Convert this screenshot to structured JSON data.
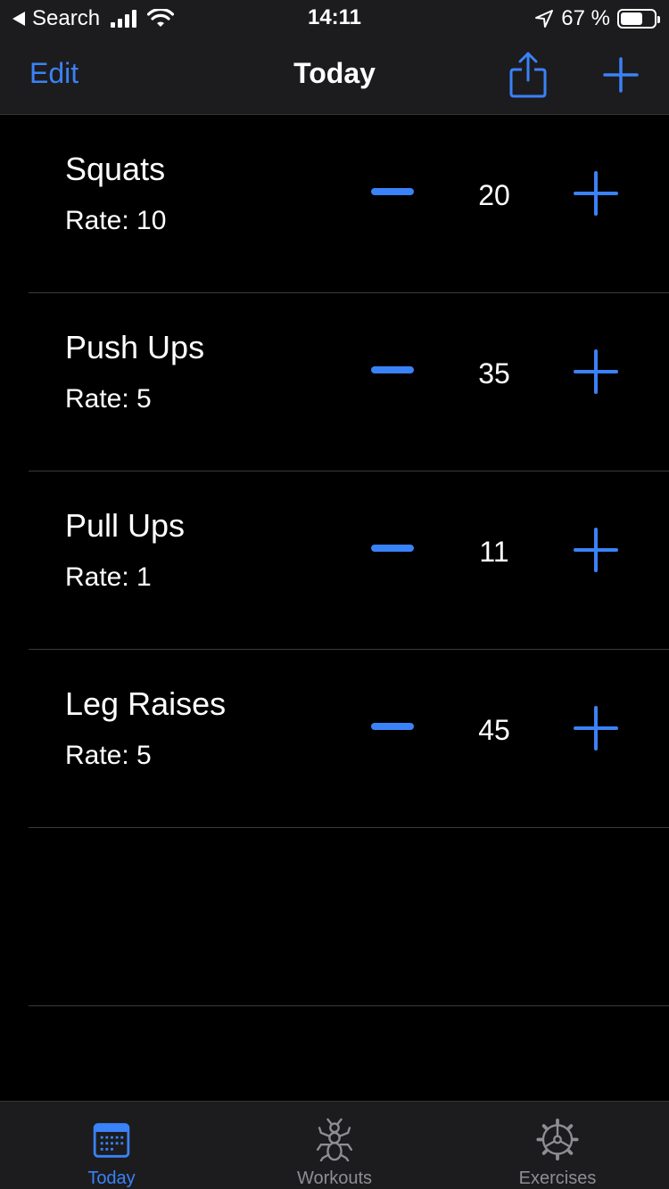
{
  "status_bar": {
    "back_label": "Search",
    "time": "14:11",
    "battery": "67 %",
    "battery_level": 0.67
  },
  "nav": {
    "edit_label": "Edit",
    "title": "Today"
  },
  "exercises": [
    {
      "name": "Squats",
      "rate": "Rate: 10",
      "count": "20"
    },
    {
      "name": "Push Ups",
      "rate": "Rate: 5",
      "count": "35"
    },
    {
      "name": "Pull Ups",
      "rate": "Rate: 1",
      "count": "11"
    },
    {
      "name": "Leg Raises",
      "rate": "Rate: 5",
      "count": "45"
    }
  ],
  "tabs": [
    {
      "label": "Today",
      "icon": "calendar-icon",
      "active": true
    },
    {
      "label": "Workouts",
      "icon": "bug-icon",
      "active": false
    },
    {
      "label": "Exercises",
      "icon": "gear-icon",
      "active": false
    }
  ],
  "colors": {
    "accent": "#3a82f7",
    "background": "#000000",
    "bar": "#1c1c1e",
    "inactive": "#8e8e93"
  }
}
